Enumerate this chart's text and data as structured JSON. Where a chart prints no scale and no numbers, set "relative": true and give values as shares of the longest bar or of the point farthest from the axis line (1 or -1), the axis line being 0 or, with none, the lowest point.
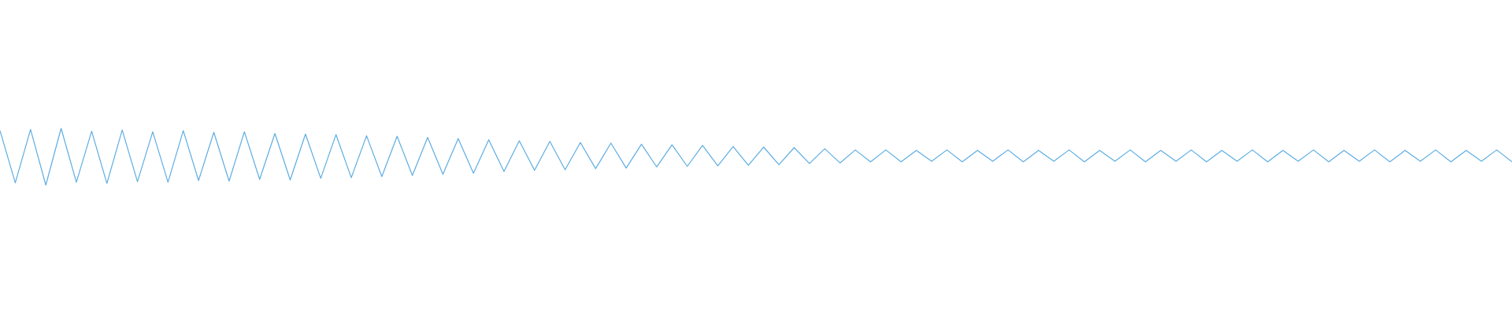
{
  "chart_data": {
    "type": "line",
    "relative": true,
    "color": "#5dade2",
    "categories": [
      null,
      null,
      null,
      null,
      null,
      null,
      null,
      null,
      null,
      null,
      null,
      null,
      null,
      null,
      null,
      null,
      null,
      null,
      null,
      null,
      null,
      null,
      null,
      null,
      null,
      null,
      null,
      null,
      null,
      null,
      null,
      null,
      null,
      null,
      null,
      null,
      null,
      null,
      null,
      null,
      null,
      null,
      null,
      null,
      null,
      null,
      null,
      null,
      null,
      null,
      null,
      null,
      null,
      null,
      null,
      null,
      null,
      null,
      null,
      null,
      null,
      null,
      null,
      null,
      null,
      null,
      null,
      null,
      null,
      null,
      null,
      null,
      null,
      null,
      null,
      null,
      null,
      null,
      null,
      null,
      null,
      null,
      null,
      null,
      null,
      null,
      null,
      null,
      null,
      null,
      null,
      null,
      null,
      null,
      null,
      null,
      null,
      null,
      null,
      null
    ],
    "values": [
      0.96,
      0.04,
      0.98,
      0.0,
      1.0,
      0.05,
      0.95,
      0.03,
      0.97,
      0.06,
      0.94,
      0.05,
      0.96,
      0.08,
      0.93,
      0.07,
      0.94,
      0.1,
      0.91,
      0.09,
      0.9,
      0.12,
      0.89,
      0.13,
      0.87,
      0.15,
      0.86,
      0.17,
      0.84,
      0.19,
      0.82,
      0.21,
      0.8,
      0.24,
      0.78,
      0.26,
      0.77,
      0.27,
      0.75,
      0.29,
      0.74,
      0.3,
      0.72,
      0.32,
      0.71,
      0.33,
      0.7,
      0.34,
      0.68,
      0.35,
      0.67,
      0.36,
      0.66,
      0.38,
      0.64,
      0.39,
      0.62,
      0.41,
      0.62,
      0.41,
      0.61,
      0.42,
      0.62,
      0.41,
      0.61,
      0.42,
      0.62,
      0.41,
      0.61,
      0.42,
      0.62,
      0.41,
      0.61,
      0.42,
      0.62,
      0.41,
      0.61,
      0.42,
      0.62,
      0.41,
      0.61,
      0.42,
      0.62,
      0.41,
      0.61,
      0.42,
      0.62,
      0.41,
      0.61,
      0.42,
      0.62,
      0.41,
      0.61,
      0.42,
      0.62,
      0.41,
      0.61,
      0.42,
      0.62,
      0.41
    ]
  }
}
